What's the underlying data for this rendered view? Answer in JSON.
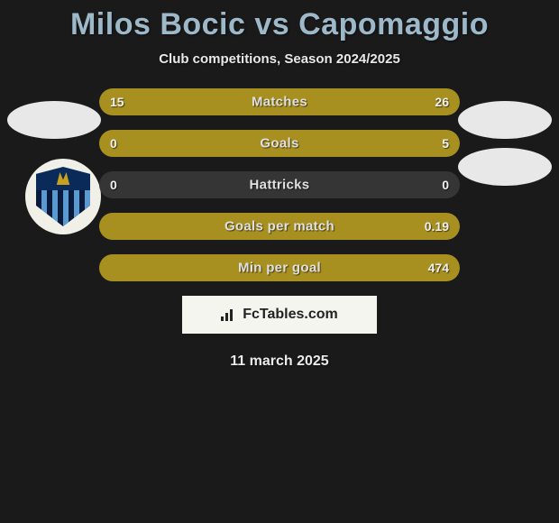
{
  "header": {
    "title": "Milos Bocic vs Capomaggio",
    "subtitle": "Club competitions, Season 2024/2025",
    "title_color": "#9db8c9"
  },
  "watermark": {
    "text": "FcTables.com"
  },
  "date": "11 march 2025",
  "bar_track_color": "#353535",
  "bar_fill_color": "#a89020",
  "stats": [
    {
      "label": "Matches",
      "left_val": "15",
      "right_val": "26",
      "left_pct": 36.6,
      "right_pct": 63.4
    },
    {
      "label": "Goals",
      "left_val": "0",
      "right_val": "5",
      "left_pct": 0,
      "right_pct": 100
    },
    {
      "label": "Hattricks",
      "left_val": "0",
      "right_val": "0",
      "left_pct": 0,
      "right_pct": 0
    },
    {
      "label": "Goals per match",
      "left_val": "",
      "right_val": "0.19",
      "left_pct": 0,
      "right_pct": 100
    },
    {
      "label": "Min per goal",
      "left_val": "",
      "right_val": "474",
      "left_pct": 0,
      "right_pct": 100
    }
  ]
}
